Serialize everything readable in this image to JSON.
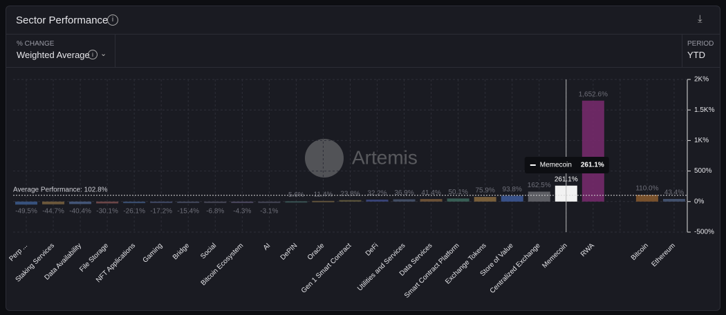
{
  "header": {
    "title": "Sector Performance",
    "metric_label": "% CHANGE",
    "metric_value": "Weighted Average",
    "period_label": "PERIOD",
    "period_value": "YTD"
  },
  "watermark": "Artemis",
  "chart_data": {
    "type": "bar",
    "categories": [
      "Perp ...",
      "Staking Services",
      "Data Availability",
      "File Storage",
      "NFT Applications",
      "Gaming",
      "Bridge",
      "Social",
      "Bitcoin Ecosystem",
      "AI",
      "DePIN",
      "Oracle",
      "Gen 1 Smart Contract",
      "DeFi",
      "Utilities and Services",
      "Data Services",
      "Smart Contract Platform",
      "Exchange Tokens",
      "Store of Value",
      "Centralized Exchange",
      "Memecoin",
      "RWA",
      null,
      "Bitcoin",
      "Ethereum"
    ],
    "values": [
      -49.5,
      -44.7,
      -40.4,
      -30.1,
      -26.1,
      -17.2,
      -15.4,
      -6.8,
      -4.3,
      -3.1,
      5.6,
      11.4,
      23.8,
      32.2,
      36.9,
      41.4,
      50.1,
      75.9,
      93.8,
      162.5,
      261.1,
      1652.6,
      null,
      110.0,
      43.4
    ],
    "value_labels": [
      "-49.5%",
      "-44.7%",
      "-40.4%",
      "-30.1%",
      "-26.1%",
      "-17.2%",
      "-15.4%",
      "-6.8%",
      "-4.3%",
      "-3.1%",
      "5.6%",
      "11.4%",
      "23.8%",
      "32.2%",
      "36.9%",
      "41.4%",
      "50.1%",
      "75.9%",
      "93.8%",
      "162.5%",
      "261.1%",
      "1,652.6%",
      null,
      "110.0%",
      "43.4%"
    ],
    "colors": [
      "#3d5a8c",
      "#7a6240",
      "#4b5f86",
      "#7a4e4e",
      "#40557a",
      "#465070",
      "#4a5066",
      "#4e4e5e",
      "#55506a",
      "#4a4a5c",
      "#3e5a5a",
      "#6a5a3e",
      "#6a6040",
      "#3e4a86",
      "#4a5670",
      "#7a5a3a",
      "#3e6a5e",
      "#8a6a3e",
      "#3e5a9a",
      "#6a6a70",
      "#f2f2f2",
      "#7a2a6e",
      null,
      "#8a5a2e",
      "#4a5a7a"
    ],
    "highlight_index": 20,
    "ylim": [
      -500,
      2000
    ],
    "yticks": [
      {
        "value": -500,
        "label": "-500%"
      },
      {
        "value": 0,
        "label": "0%"
      },
      {
        "value": 500,
        "label": "500%"
      },
      {
        "value": 1000,
        "label": "1K%"
      },
      {
        "value": 1500,
        "label": "1.5K%"
      },
      {
        "value": 2000,
        "label": "2K%"
      }
    ],
    "average": {
      "value": 102.8,
      "label": "Average Performance: 102.8%"
    },
    "grid": true
  }
}
